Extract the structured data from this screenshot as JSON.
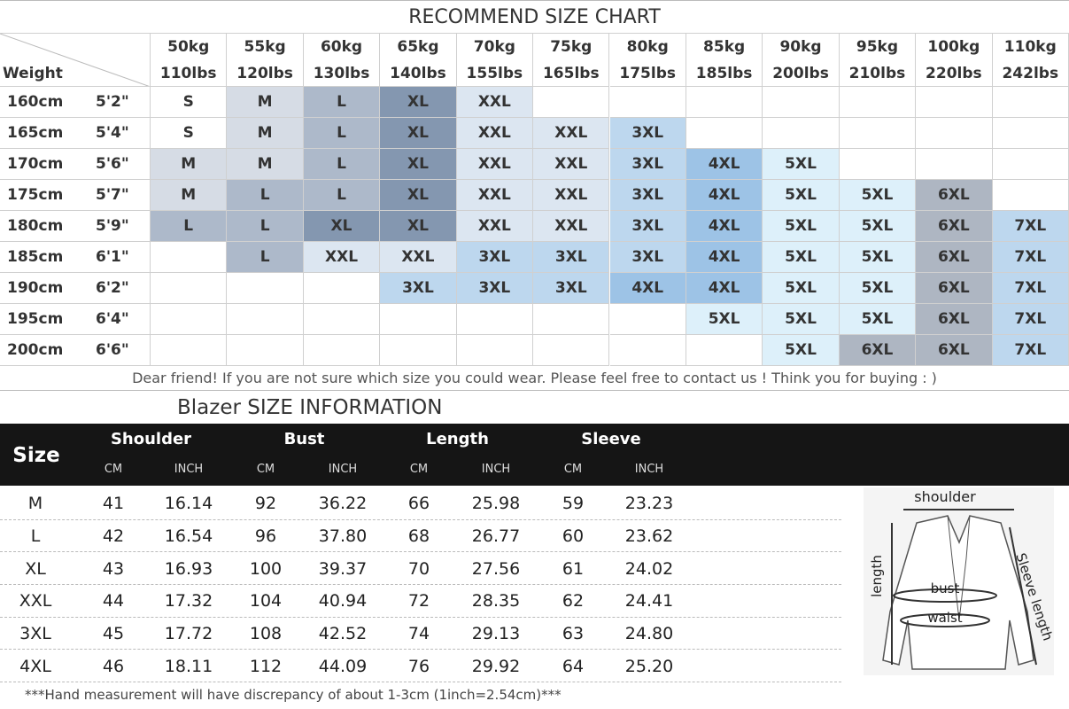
{
  "recommend": {
    "title": "RECOMMEND SIZE CHART",
    "weight_label": "Weight",
    "kg": [
      "50kg",
      "55kg",
      "60kg",
      "65kg",
      "70kg",
      "75kg",
      "80kg",
      "85kg",
      "90kg",
      "95kg",
      "100kg",
      "110kg"
    ],
    "lbs": [
      "110lbs",
      "120lbs",
      "130lbs",
      "140lbs",
      "155lbs",
      "165lbs",
      "175lbs",
      "185lbs",
      "200lbs",
      "210lbs",
      "220lbs",
      "242lbs"
    ],
    "cell_colors": {
      "S": "#ffffff",
      "M": "#d6dce5",
      "L": "#adb9ca",
      "XL": "#8497b0",
      "XXL": "#dce6f1",
      "3XL": "#bdd7ee",
      "4XL": "#9dc3e6",
      "5XL": "#ddf0fa",
      "6XL": "#aeb6c2",
      "7XL": "#bdd7ee"
    },
    "rows": [
      {
        "cm": "160cm",
        "ft": "5'2\"",
        "sizes": [
          "S",
          "M",
          "L",
          "XL",
          "XXL",
          null,
          null,
          null,
          null,
          null,
          null,
          null
        ]
      },
      {
        "cm": "165cm",
        "ft": "5'4\"",
        "sizes": [
          "S",
          "M",
          "L",
          "XL",
          "XXL",
          "XXL",
          "3XL",
          null,
          null,
          null,
          null,
          null
        ]
      },
      {
        "cm": "170cm",
        "ft": "5'6\"",
        "sizes": [
          "M",
          "M",
          "L",
          "XL",
          "XXL",
          "XXL",
          "3XL",
          "4XL",
          "5XL",
          null,
          null,
          null
        ]
      },
      {
        "cm": "175cm",
        "ft": "5'7\"",
        "sizes": [
          "M",
          "L",
          "L",
          "XL",
          "XXL",
          "XXL",
          "3XL",
          "4XL",
          "5XL",
          "5XL",
          "6XL",
          null
        ]
      },
      {
        "cm": "180cm",
        "ft": "5'9\"",
        "sizes": [
          "L",
          "L",
          "XL",
          "XL",
          "XXL",
          "XXL",
          "3XL",
          "4XL",
          "5XL",
          "5XL",
          "6XL",
          "7XL"
        ]
      },
      {
        "cm": "185cm",
        "ft": "6'1\"",
        "sizes": [
          null,
          "L",
          "XXL",
          "XXL",
          "3XL",
          "3XL",
          "3XL",
          "4XL",
          "5XL",
          "5XL",
          "6XL",
          "7XL"
        ]
      },
      {
        "cm": "190cm",
        "ft": "6'2\"",
        "sizes": [
          null,
          null,
          null,
          "3XL",
          "3XL",
          "3XL",
          "4XL",
          "4XL",
          "5XL",
          "5XL",
          "6XL",
          "7XL"
        ]
      },
      {
        "cm": "195cm",
        "ft": "6'4\"",
        "sizes": [
          null,
          null,
          null,
          null,
          null,
          null,
          null,
          "5XL",
          "5XL",
          "5XL",
          "6XL",
          "7XL"
        ]
      },
      {
        "cm": "200cm",
        "ft": "6'6\"",
        "sizes": [
          null,
          null,
          null,
          null,
          null,
          null,
          null,
          null,
          "5XL",
          "6XL",
          "6XL",
          "7XL"
        ]
      }
    ],
    "note": "Dear friend! If you are not sure which size you could wear. Please feel free to contact us ! Think you for buying  : )"
  },
  "blazer": {
    "title": "Blazer SIZE INFORMATION",
    "size_label": "Size",
    "groups": [
      "Shoulder",
      "Bust",
      "Length",
      "Sleeve"
    ],
    "units": [
      "CM",
      "INCH"
    ],
    "rows": [
      [
        "M",
        "41",
        "16.14",
        "92",
        "36.22",
        "66",
        "25.98",
        "59",
        "23.23"
      ],
      [
        "L",
        "42",
        "16.54",
        "96",
        "37.80",
        "68",
        "26.77",
        "60",
        "23.62"
      ],
      [
        "XL",
        "43",
        "16.93",
        "100",
        "39.37",
        "70",
        "27.56",
        "61",
        "24.02"
      ],
      [
        "XXL",
        "44",
        "17.32",
        "104",
        "40.94",
        "72",
        "28.35",
        "62",
        "24.41"
      ],
      [
        "3XL",
        "45",
        "17.72",
        "108",
        "42.52",
        "74",
        "29.13",
        "63",
        "24.80"
      ],
      [
        "4XL",
        "46",
        "18.11",
        "112",
        "44.09",
        "76",
        "29.92",
        "64",
        "25.20"
      ]
    ],
    "footnote": "***Hand measurement will have discrepancy of about 1-3cm (1inch=2.54cm)***",
    "diagram": {
      "shoulder": "shoulder",
      "length": "length",
      "bust": "bust",
      "waist": "waist",
      "sleeve": "Sleeve length"
    }
  }
}
